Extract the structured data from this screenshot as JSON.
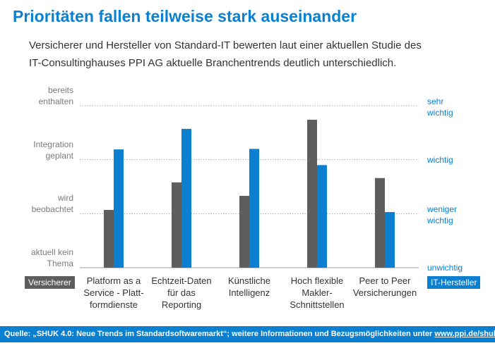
{
  "chart_data": {
    "type": "bar",
    "title": "Prioritäten fallen teilweise stark auseinander",
    "subtitle": "Versicherer und Hersteller von Standard-IT bewerten laut einer aktuellen Studie des IT-Consultinghauses PPI AG aktuelle Branchentrends deutlich unterschiedlich.",
    "categories": [
      "Platform as a\nService - Platt-\nformdienste",
      "Echtzeit-Daten\nfür das\nReporting",
      "Künstliche\nIntelligenz",
      "Hoch flexible\nMakler-\nSchnittstellen",
      "Peer to Peer\nVersicherungen"
    ],
    "series": [
      {
        "name": "Versicherer",
        "color": "#5e5e5e",
        "values": [
          1.07,
          1.58,
          1.33,
          2.74,
          1.66
        ]
      },
      {
        "name": "IT-Hersteller",
        "color": "#0b7fd0",
        "axis": "y2",
        "values": [
          2.19,
          2.57,
          2.2,
          1.9,
          1.03
        ]
      }
    ],
    "ylim": [
      0,
      3
    ],
    "yticks": [
      {
        "value": 0,
        "label": "aktuell kein\nThema"
      },
      {
        "value": 1,
        "label": "wird\nbeobachtet"
      },
      {
        "value": 2,
        "label": "Integration\ngeplant"
      },
      {
        "value": 3,
        "label": "bereits\nenthalten"
      }
    ],
    "y2lim": [
      0,
      3
    ],
    "y2ticks": [
      {
        "value": 0,
        "label": "unwichtig"
      },
      {
        "value": 1,
        "label": "weniger\nwichtig"
      },
      {
        "value": 2,
        "label": "wichtig"
      },
      {
        "value": 3,
        "label": "sehr\nwichtig"
      }
    ],
    "grid": true,
    "source": "Quelle: „SHUK 4.0: Neue Trends im Standardsoftwaremarkt“; weitere Informationen und Bezugsmöglichkeiten unter",
    "source_link": "www.ppi.de/shuk"
  }
}
